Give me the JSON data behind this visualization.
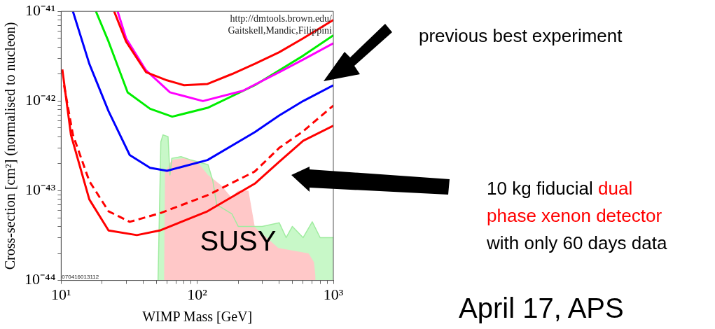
{
  "chart_data": {
    "type": "line",
    "xlabel": "WIMP Mass [GeV]",
    "ylabel": "Cross-section [cm²] (normalised to nucleon)",
    "log": "xy",
    "legend": false,
    "grid": false,
    "marker": "none",
    "xlim": [
      10,
      1000
    ],
    "ylim": [
      1e-44,
      1e-41
    ],
    "xticks": [
      {
        "value": 10,
        "label": "10¹"
      },
      {
        "value": 20,
        "label": null
      },
      {
        "value": 30,
        "label": null
      },
      {
        "value": 40,
        "label": null
      },
      {
        "value": 50,
        "label": null
      },
      {
        "value": 60,
        "label": null
      },
      {
        "value": 70,
        "label": null
      },
      {
        "value": 80,
        "label": null
      },
      {
        "value": 90,
        "label": null
      },
      {
        "value": 100,
        "label": "10²"
      },
      {
        "value": 200,
        "label": null
      },
      {
        "value": 300,
        "label": null
      },
      {
        "value": 400,
        "label": null
      },
      {
        "value": 500,
        "label": null
      },
      {
        "value": 600,
        "label": null
      },
      {
        "value": 700,
        "label": null
      },
      {
        "value": 800,
        "label": null
      },
      {
        "value": 900,
        "label": null
      },
      {
        "value": 1000,
        "label": "10³"
      }
    ],
    "yticks": [
      {
        "value": 1e-44,
        "label": "10⁻⁴⁴"
      },
      {
        "value": 2e-44,
        "label": null
      },
      {
        "value": 3e-44,
        "label": null
      },
      {
        "value": 4e-44,
        "label": null
      },
      {
        "value": 5e-44,
        "label": null
      },
      {
        "value": 6e-44,
        "label": null
      },
      {
        "value": 7e-44,
        "label": null
      },
      {
        "value": 8e-44,
        "label": null
      },
      {
        "value": 9e-44,
        "label": null
      },
      {
        "value": 1e-43,
        "label": "10⁻⁴³"
      },
      {
        "value": 2e-43,
        "label": null
      },
      {
        "value": 3e-43,
        "label": null
      },
      {
        "value": 4e-43,
        "label": null
      },
      {
        "value": 5e-43,
        "label": null
      },
      {
        "value": 6e-43,
        "label": null
      },
      {
        "value": 7e-43,
        "label": null
      },
      {
        "value": 8e-43,
        "label": null
      },
      {
        "value": 9e-43,
        "label": null
      },
      {
        "value": 1e-42,
        "label": "10⁻⁴²"
      },
      {
        "value": 2e-42,
        "label": null
      },
      {
        "value": 3e-42,
        "label": null
      },
      {
        "value": 4e-42,
        "label": null
      },
      {
        "value": 5e-42,
        "label": null
      },
      {
        "value": 6e-42,
        "label": null
      },
      {
        "value": 7e-42,
        "label": null
      },
      {
        "value": 8e-42,
        "label": null
      },
      {
        "value": 9e-42,
        "label": null
      },
      {
        "value": 1e-41,
        "label": "10⁻⁴¹"
      }
    ],
    "series": [
      {
        "type": "area",
        "color": "#c8f8c8",
        "x": [
          51.5,
          52,
          54,
          56,
          61,
          63,
          65,
          76,
          90,
          120,
          130,
          139,
          180,
          200,
          300,
          400,
          450,
          500,
          600,
          700,
          800,
          1000
        ],
        "values": [
          1e-44,
          2e-44,
          3.5e-43,
          4.2e-43,
          4e-43,
          1.5e-43,
          2.3e-43,
          2.4e-43,
          2.2e-43,
          1.95e-43,
          1.3e-43,
          7e-44,
          5.5e-44,
          4e-44,
          4e-44,
          4.4e-44,
          3e-44,
          4e-44,
          3e-44,
          4.5e-44,
          3e-44,
          3e-44
        ]
      },
      {
        "type": "area",
        "color": "#ffc8c8",
        "x": [
          57,
          58,
          65,
          80,
          100,
          120,
          150,
          177,
          200,
          238,
          265,
          394,
          658,
          720,
          740
        ],
        "values": [
          1.2e-44,
          1.6e-43,
          2.2e-43,
          2.3e-43,
          2.1e-43,
          1.5e-43,
          1.15e-43,
          8.5e-44,
          1e-43,
          1e-43,
          3.9e-44,
          2.3e-44,
          2e-44,
          1.6e-44,
          1.1e-44
        ]
      },
      {
        "color": "#ff0000",
        "x": [
          24.5,
          30,
          42,
          60,
          80,
          119,
          180,
          265,
          400,
          600,
          1000
        ],
        "values": [
          1e-41,
          4.6e-42,
          2.1e-42,
          1.7e-42,
          1.5e-42,
          1.55e-42,
          2e-42,
          2.6e-42,
          3.5e-42,
          5e-42,
          8e-42
        ]
      },
      {
        "color": "#ff00ff",
        "x": [
          26,
          30,
          42,
          63,
          110,
          216,
          400,
          600,
          1000
        ],
        "values": [
          1e-41,
          5e-42,
          2.2e-42,
          1.25e-42,
          1e-42,
          1.3e-42,
          2.1e-42,
          2.9e-42,
          4.4e-42
        ]
      },
      {
        "color": "#00ee00",
        "x": [
          18,
          22.3,
          30.8,
          45,
          65.5,
          119,
          265,
          400,
          600,
          1000
        ],
        "values": [
          1e-41,
          4.6e-42,
          1.25e-42,
          8.2e-43,
          6.7e-43,
          8.4e-43,
          1.5e-42,
          2.2e-42,
          3.2e-42,
          5.4e-42
        ]
      },
      {
        "color": "#0000ff",
        "x": [
          12.2,
          16.1,
          22.3,
          31.9,
          45,
          60,
          119,
          265,
          400,
          600,
          1000
        ],
        "values": [
          1e-41,
          2.6e-42,
          7.7e-43,
          2.5e-43,
          1.8e-43,
          1.67e-43,
          2.2e-43,
          4.5e-43,
          6.9e-43,
          1e-42,
          1.5e-42
        ]
      },
      {
        "color": "#ff0000",
        "line_style": "dashed",
        "x": [
          10.5,
          12.2,
          16.1,
          22.3,
          31.9,
          53,
          119,
          265,
          400,
          600,
          1000
        ],
        "values": [
          1.5e-42,
          4.2e-43,
          1.28e-43,
          5.9e-44,
          4.5e-44,
          5.6e-44,
          8.9e-44,
          1.64e-43,
          3e-43,
          4.6e-43,
          8.9e-43
        ]
      },
      {
        "color": "#ff0000",
        "x": [
          10.2,
          11.8,
          16.1,
          22.3,
          36,
          53,
          119,
          265,
          400,
          600,
          1000
        ],
        "values": [
          2.25e-42,
          4.2e-43,
          8e-44,
          3.6e-44,
          3.2e-44,
          3.6e-44,
          5.9e-44,
          1.2e-43,
          2.1e-43,
          3.6e-43,
          5.3e-43
        ]
      }
    ],
    "annotations": [
      "http://dmtools.brown.edu/",
      "Gaitskell,Mandic,Filippini",
      "070416013112",
      "SUSY",
      "previous best experiment",
      "10 kg fiducial dual phase xenon detector with only 60 days data",
      "April 17, APS"
    ]
  }
}
